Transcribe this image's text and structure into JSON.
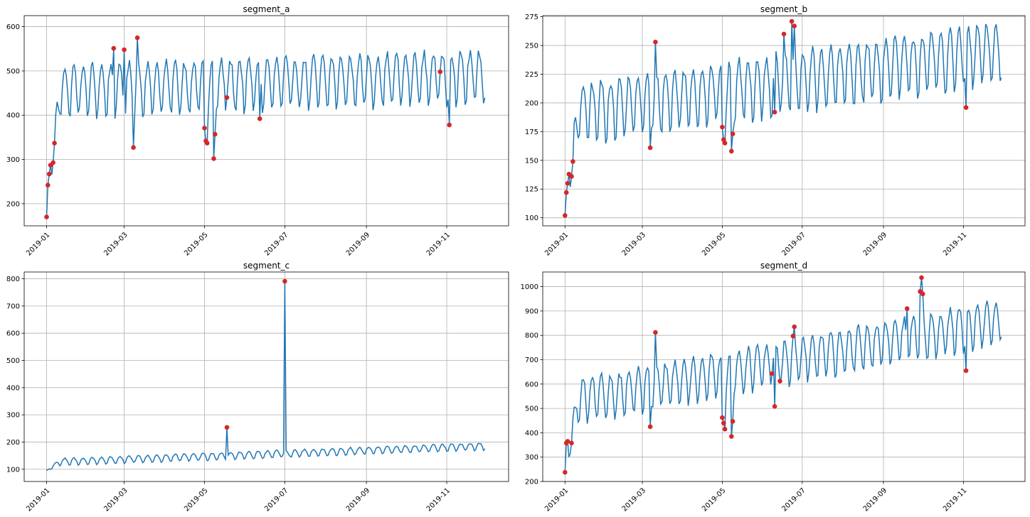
{
  "chart_data": [
    {
      "type": "line",
      "title": "segment_a",
      "xlabel": "",
      "ylabel": "",
      "x_ticks": [
        "2019-01",
        "2019-03",
        "2019-05",
        "2019-07",
        "2019-09",
        "2019-11"
      ],
      "x_tick_days": [
        0,
        59,
        120,
        181,
        243,
        304
      ],
      "xlim_days": [
        -17,
        351
      ],
      "ylim": [
        150,
        625
      ],
      "y_ticks": [
        200,
        300,
        400,
        500,
        600
      ],
      "grid": true,
      "line_color": "#1f77b4",
      "anomaly_color": "#d62728",
      "series_profile": {
        "start": 170,
        "base": 455,
        "amplitude": 62,
        "trend_end": 490
      },
      "anomalies": [
        {
          "x": "2019-01-01",
          "y": 170
        },
        {
          "x": "2019-01-02",
          "y": 242
        },
        {
          "x": "2019-01-03",
          "y": 267
        },
        {
          "x": "2019-01-04",
          "y": 287
        },
        {
          "x": "2019-01-06",
          "y": 293
        },
        {
          "x": "2019-01-07",
          "y": 337
        },
        {
          "x": "2019-02-21",
          "y": 551
        },
        {
          "x": "2019-03-01",
          "y": 548
        },
        {
          "x": "2019-03-08",
          "y": 327
        },
        {
          "x": "2019-03-11",
          "y": 575
        },
        {
          "x": "2019-05-01",
          "y": 371
        },
        {
          "x": "2019-05-02",
          "y": 342
        },
        {
          "x": "2019-05-03",
          "y": 337
        },
        {
          "x": "2019-05-08",
          "y": 302
        },
        {
          "x": "2019-05-09",
          "y": 357
        },
        {
          "x": "2019-05-18",
          "y": 440
        },
        {
          "x": "2019-06-12",
          "y": 392
        },
        {
          "x": "2019-10-27",
          "y": 498
        },
        {
          "x": "2019-11-03",
          "y": 378
        }
      ]
    },
    {
      "type": "line",
      "title": "segment_b",
      "xlabel": "",
      "ylabel": "",
      "x_ticks": [
        "2019-01",
        "2019-03",
        "2019-05",
        "2019-07",
        "2019-09",
        "2019-11"
      ],
      "x_tick_days": [
        0,
        59,
        120,
        181,
        243,
        304
      ],
      "xlim_days": [
        -17,
        351
      ],
      "ylim": [
        93,
        276
      ],
      "y_ticks": [
        100,
        125,
        150,
        175,
        200,
        225,
        250,
        275
      ],
      "grid": true,
      "line_color": "#1f77b4",
      "anomaly_color": "#d62728",
      "series_profile": {
        "start": 102,
        "base": 190,
        "amplitude": 28,
        "trend_end": 245
      },
      "anomalies": [
        {
          "x": "2019-01-01",
          "y": 102
        },
        {
          "x": "2019-01-02",
          "y": 122
        },
        {
          "x": "2019-01-03",
          "y": 130
        },
        {
          "x": "2019-01-04",
          "y": 138
        },
        {
          "x": "2019-01-06",
          "y": 136
        },
        {
          "x": "2019-01-07",
          "y": 149
        },
        {
          "x": "2019-03-07",
          "y": 161
        },
        {
          "x": "2019-03-11",
          "y": 253
        },
        {
          "x": "2019-05-01",
          "y": 179
        },
        {
          "x": "2019-05-02",
          "y": 168
        },
        {
          "x": "2019-05-03",
          "y": 165
        },
        {
          "x": "2019-05-08",
          "y": 158
        },
        {
          "x": "2019-05-09",
          "y": 173
        },
        {
          "x": "2019-06-10",
          "y": 192
        },
        {
          "x": "2019-06-17",
          "y": 260
        },
        {
          "x": "2019-06-23",
          "y": 271
        },
        {
          "x": "2019-06-25",
          "y": 267
        },
        {
          "x": "2019-11-03",
          "y": 196
        }
      ]
    },
    {
      "type": "line",
      "title": "segment_c",
      "xlabel": "",
      "ylabel": "",
      "x_ticks": [
        "2019-01",
        "2019-03",
        "2019-05",
        "2019-07",
        "2019-09",
        "2019-11"
      ],
      "x_tick_days": [
        0,
        59,
        120,
        181,
        243,
        304
      ],
      "xlim_days": [
        -17,
        351
      ],
      "ylim": [
        55,
        825
      ],
      "y_ticks": [
        100,
        200,
        300,
        400,
        500,
        600,
        700,
        800
      ],
      "grid": true,
      "line_color": "#1f77b4",
      "anomaly_color": "#d62728",
      "series_profile": {
        "start": 95,
        "base": 125,
        "amplitude": 14,
        "trend_end": 185
      },
      "anomalies": [
        {
          "x": "2019-05-18",
          "y": 254
        },
        {
          "x": "2019-07-01",
          "y": 791
        }
      ]
    },
    {
      "type": "line",
      "title": "segment_d",
      "xlabel": "",
      "ylabel": "",
      "x_ticks": [
        "2019-01",
        "2019-03",
        "2019-05",
        "2019-07",
        "2019-09",
        "2019-11"
      ],
      "x_tick_days": [
        0,
        59,
        120,
        181,
        243,
        304
      ],
      "xlim_days": [
        -17,
        351
      ],
      "ylim": [
        200,
        1060
      ],
      "y_ticks": [
        200,
        300,
        400,
        500,
        600,
        700,
        800,
        900,
        1000
      ],
      "grid": true,
      "line_color": "#1f77b4",
      "anomaly_color": "#d62728",
      "series_profile": {
        "start": 238,
        "base": 520,
        "amplitude": 95,
        "trend_end": 860
      },
      "anomalies": [
        {
          "x": "2019-01-01",
          "y": 238
        },
        {
          "x": "2019-01-02",
          "y": 358
        },
        {
          "x": "2019-01-03",
          "y": 365
        },
        {
          "x": "2019-01-06",
          "y": 358
        },
        {
          "x": "2019-03-07",
          "y": 425
        },
        {
          "x": "2019-03-11",
          "y": 812
        },
        {
          "x": "2019-05-01",
          "y": 462
        },
        {
          "x": "2019-05-02",
          "y": 440
        },
        {
          "x": "2019-05-03",
          "y": 415
        },
        {
          "x": "2019-05-08",
          "y": 385
        },
        {
          "x": "2019-05-09",
          "y": 447
        },
        {
          "x": "2019-06-08",
          "y": 643
        },
        {
          "x": "2019-06-10",
          "y": 508
        },
        {
          "x": "2019-06-14",
          "y": 612
        },
        {
          "x": "2019-06-24",
          "y": 797
        },
        {
          "x": "2019-06-25",
          "y": 835
        },
        {
          "x": "2019-09-19",
          "y": 910
        },
        {
          "x": "2019-09-29",
          "y": 980
        },
        {
          "x": "2019-09-30",
          "y": 1037
        },
        {
          "x": "2019-10-01",
          "y": 970
        },
        {
          "x": "2019-11-03",
          "y": 655
        }
      ]
    }
  ]
}
